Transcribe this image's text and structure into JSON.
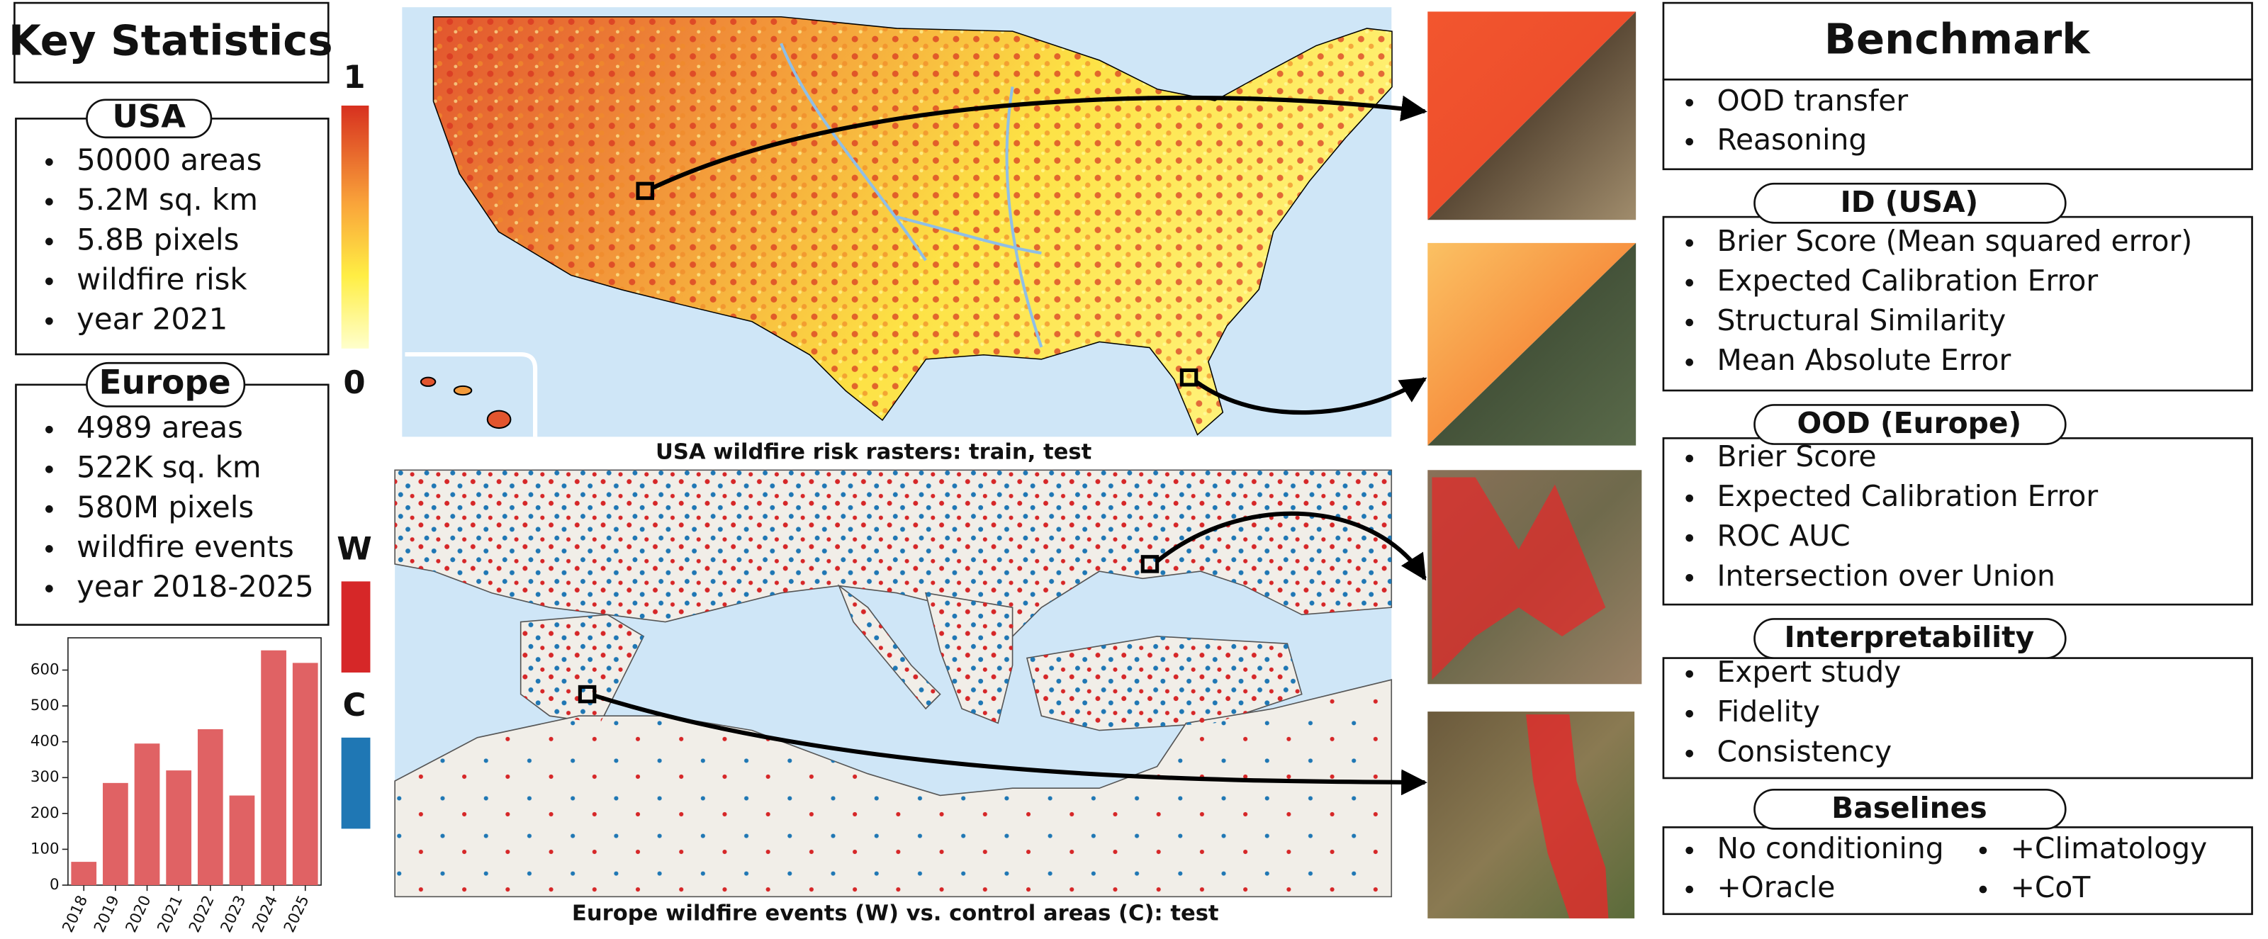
{
  "key_statistics": {
    "title": "Key Statistics",
    "usa": {
      "title": "USA",
      "items": [
        "50000 areas",
        "5.2M sq. km",
        "5.8B pixels",
        "wildfire risk",
        "year 2021"
      ]
    },
    "europe": {
      "title": "Europe",
      "items": [
        "4989 areas",
        "522K sq. km",
        "580M pixels",
        "wildfire events",
        "year 2018-2025"
      ]
    }
  },
  "colorbar": {
    "high": 1,
    "low": 0
  },
  "event_legend": {
    "wildfire": "W",
    "control": "C",
    "wildfire_color": "#d62728",
    "control_color": "#1f77b4"
  },
  "chart_data": {
    "type": "bar",
    "categories": [
      "2018",
      "2019",
      "2020",
      "2021",
      "2022",
      "2023",
      "2024",
      "2025"
    ],
    "values": [
      65,
      285,
      395,
      320,
      435,
      250,
      655,
      620
    ],
    "color": "#e06264",
    "ylim": [
      0,
      690
    ],
    "yticks": [
      0,
      100,
      200,
      300,
      400,
      500,
      600
    ]
  },
  "maps": {
    "usa_caption": "USA wildfire risk rasters: train, test",
    "europe_caption": "Europe wildfire events (W) vs. control areas (C): test"
  },
  "benchmark": {
    "title": "Benchmark",
    "items": [
      "OOD transfer",
      "Reasoning"
    ],
    "sections": [
      {
        "title": "ID (USA)",
        "items": [
          "Brier Score (Mean squared error)",
          "Expected Calibration Error",
          "Structural Similarity",
          "Mean Absolute Error"
        ]
      },
      {
        "title": "OOD (Europe)",
        "items": [
          "Brier Score",
          "Expected Calibration Error",
          "ROC AUC",
          "Intersection over Union"
        ]
      },
      {
        "title": "Interpretability",
        "items": [
          "Expert study",
          "Fidelity",
          "Consistency"
        ]
      },
      {
        "title": "Baselines",
        "items": [
          "No conditioning",
          "+Climatology",
          "+Oracle",
          "+CoT"
        ]
      }
    ]
  }
}
